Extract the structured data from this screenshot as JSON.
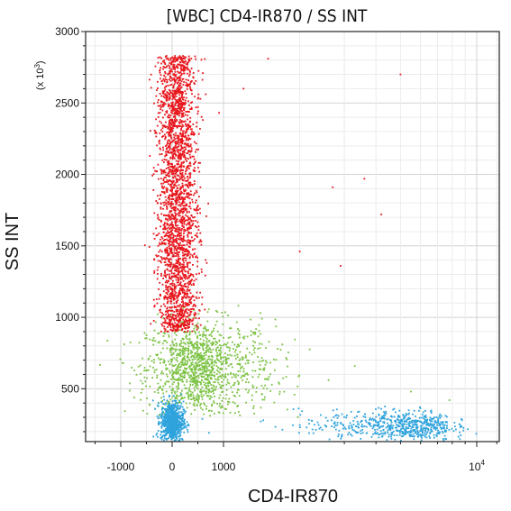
{
  "chart_data": {
    "type": "scatter",
    "title": "[WBC] CD4-IR870 / SS INT",
    "xlabel": "CD4-IR870",
    "ylabel": "SS INT",
    "y_scale_note": "(x 10",
    "y_scale_exp": "3",
    "x_scale": "biexponential",
    "x_ticks": [
      {
        "value": -1000,
        "label": "-1000"
      },
      {
        "value": 0,
        "label": "0"
      },
      {
        "value": 1000,
        "label": "1000"
      },
      {
        "value": 10000,
        "label": "10",
        "sup": "4"
      }
    ],
    "y_ticks": [
      {
        "value": 500,
        "label": "500"
      },
      {
        "value": 1000,
        "label": "1000"
      },
      {
        "value": 1500,
        "label": "1500"
      },
      {
        "value": 2000,
        "label": "2000"
      },
      {
        "value": 2500,
        "label": "2500"
      },
      {
        "value": 3000,
        "label": "3000"
      }
    ],
    "xlim": [
      -1800,
      14000
    ],
    "ylim": [
      130,
      3000
    ],
    "grid": true,
    "populations": [
      {
        "color": "#e8161c",
        "cx": 100,
        "cy": 1850,
        "sx": 190,
        "sy": 520,
        "ymin": 900,
        "ymax": 2830,
        "n": 2600
      },
      {
        "color": "#7bc242",
        "cx": 550,
        "cy": 640,
        "sx": 520,
        "sy": 170,
        "ymin": 300,
        "ymax": 1100,
        "n": 1300
      },
      {
        "color": "#2ea3dc",
        "cx": 0,
        "cy": 270,
        "sx": 110,
        "sy": 70,
        "ymin": 130,
        "ymax": 600,
        "n": 800
      },
      {
        "color": "#2ea3dc",
        "cx": 5000,
        "cy": 240,
        "sx": 1500,
        "sy": 55,
        "ymin": 130,
        "ymax": 420,
        "n": 650
      }
    ],
    "outliers": [
      {
        "x": 1500,
        "y": 2810,
        "color": "#e8161c"
      },
      {
        "x": 5000,
        "y": 2700,
        "color": "#e8161c"
      },
      {
        "x": 2700,
        "y": 1910,
        "color": "#e8161c"
      },
      {
        "x": 3600,
        "y": 1970,
        "color": "#e8161c"
      },
      {
        "x": 4200,
        "y": 1720,
        "color": "#e8161c"
      },
      {
        "x": 2900,
        "y": 1360,
        "color": "#e8161c"
      },
      {
        "x": 1200,
        "y": 2600,
        "color": "#e8161c"
      },
      {
        "x": 2000,
        "y": 1460,
        "color": "#e8161c"
      },
      {
        "x": 3300,
        "y": 660,
        "color": "#7bc242"
      },
      {
        "x": 5500,
        "y": 480,
        "color": "#7bc242"
      },
      {
        "x": 7800,
        "y": 420,
        "color": "#7bc242"
      },
      {
        "x": 2600,
        "y": 560,
        "color": "#7bc242"
      }
    ]
  }
}
